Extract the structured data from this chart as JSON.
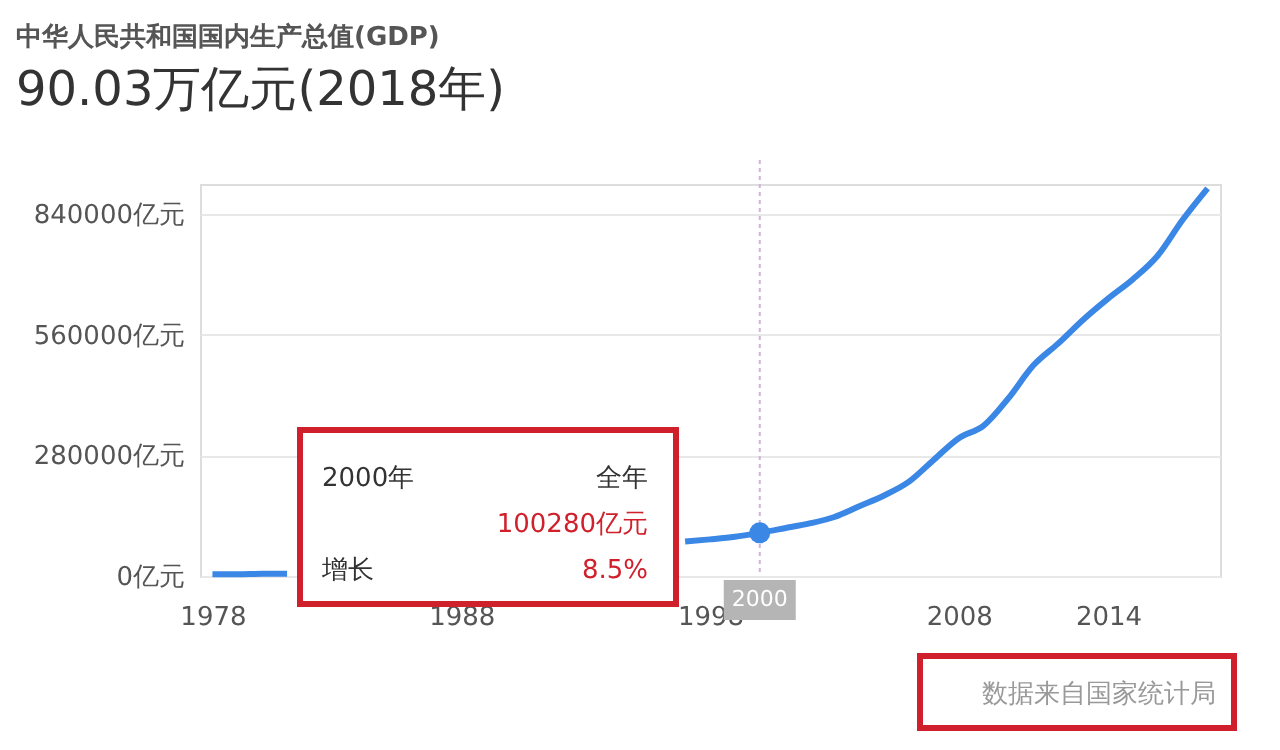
{
  "chart_data": {
    "type": "line",
    "title": "中华人民共和国国内生产总值(GDP)",
    "subtitle": "90.03万亿元(2018年)",
    "x": [
      1978,
      1979,
      1980,
      1981,
      1982,
      1983,
      1984,
      1985,
      1986,
      1987,
      1988,
      1989,
      1990,
      1991,
      1992,
      1993,
      1994,
      1995,
      1996,
      1997,
      1998,
      1999,
      2000,
      2001,
      2002,
      2003,
      2004,
      2005,
      2006,
      2007,
      2008,
      2009,
      2010,
      2011,
      2012,
      2013,
      2014,
      2015,
      2016,
      2017,
      2018
    ],
    "series": [
      {
        "color": "#3a87e6",
        "values": [
          4000,
          4000,
          5000,
          5000,
          null,
          null,
          null,
          null,
          null,
          null,
          null,
          null,
          null,
          null,
          null,
          null,
          null,
          null,
          null,
          80000,
          85000,
          91000,
          100280,
          111000,
          122000,
          137000,
          162000,
          187000,
          219000,
          270000,
          320000,
          349000,
          413000,
          489000,
          540000,
          595000,
          644000,
          689000,
          744000,
          827000,
          900000
        ]
      }
    ],
    "xlim": [
      1977.5,
      2018.5
    ],
    "xticks": [
      1978,
      1988,
      1998,
      2008,
      2014
    ],
    "ylim": [
      0,
      910000
    ],
    "yticks": [
      {
        "value": 0,
        "label": "0亿元"
      },
      {
        "value": 280000,
        "label": "280000亿元"
      },
      {
        "value": 560000,
        "label": "560000亿元"
      },
      {
        "value": 840000,
        "label": "840000亿元"
      }
    ],
    "grid": "y",
    "line_style": "solid",
    "ref_lines": [
      {
        "axis": "x",
        "value": 2000,
        "label": "2000",
        "color": "#c8b6dc",
        "line_style": "dotted"
      }
    ],
    "annotations": [
      "2000年",
      "全年",
      "100280亿元",
      "增长",
      "8.5%",
      "数据来自国家统计局"
    ]
  }
}
